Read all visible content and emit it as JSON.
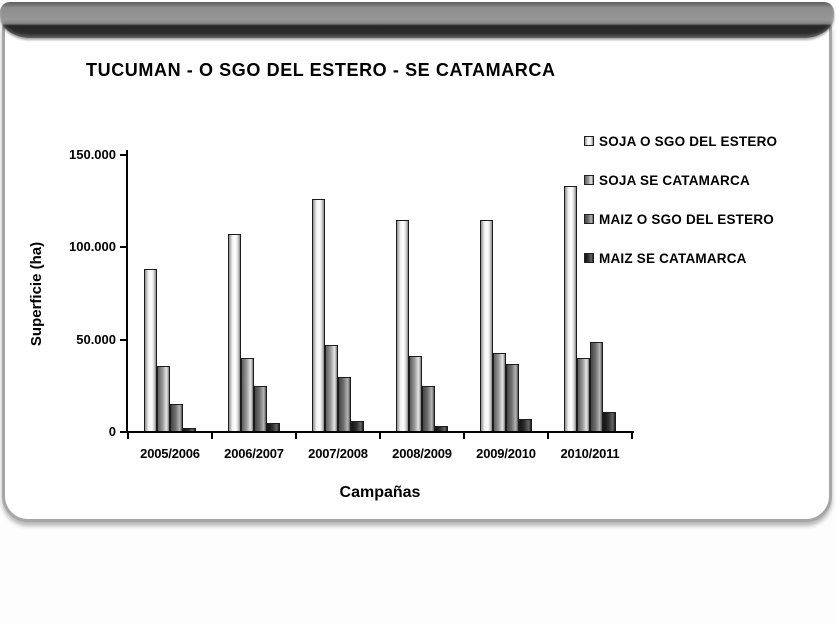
{
  "header": {
    "style": "glossy-black-bar"
  },
  "chart_data": {
    "type": "bar",
    "title": "TUCUMAN - O SGO DEL ESTERO - SE CATAMARCA",
    "xlabel": "Campañas",
    "ylabel": "Superficie (ha)",
    "ylim": [
      0,
      150000
    ],
    "yticks": [
      0,
      50000,
      100000,
      150000
    ],
    "ytick_labels": [
      "0",
      "50.000",
      "100.000",
      "150.000"
    ],
    "grid": false,
    "legend_position": "right",
    "categories": [
      "2005/2006",
      "2006/2007",
      "2007/2008",
      "2008/2009",
      "2009/2010",
      "2010/2011"
    ],
    "series": [
      {
        "name": "SOJA O SGO DEL ESTERO",
        "values": [
          88000,
          107000,
          126000,
          115000,
          115000,
          133000
        ],
        "colors": {
          "edge": "#8e8e8e",
          "mid": "#ffffff"
        }
      },
      {
        "name": "SOJA SE CATAMARCA",
        "values": [
          36000,
          40000,
          47000,
          41000,
          43000,
          40000
        ],
        "colors": {
          "edge": "#5f5f5f",
          "mid": "#e2e2e2"
        }
      },
      {
        "name": "MAIZ O SGO DEL ESTERO",
        "values": [
          15000,
          25000,
          30000,
          25000,
          37000,
          49000
        ],
        "colors": {
          "edge": "#454545",
          "mid": "#b3b3b3"
        }
      },
      {
        "name": "MAIZ SE CATAMARCA",
        "values": [
          2000,
          5000,
          6000,
          3500,
          7000,
          11000
        ],
        "colors": {
          "edge": "#141414",
          "mid": "#646464"
        }
      }
    ]
  }
}
